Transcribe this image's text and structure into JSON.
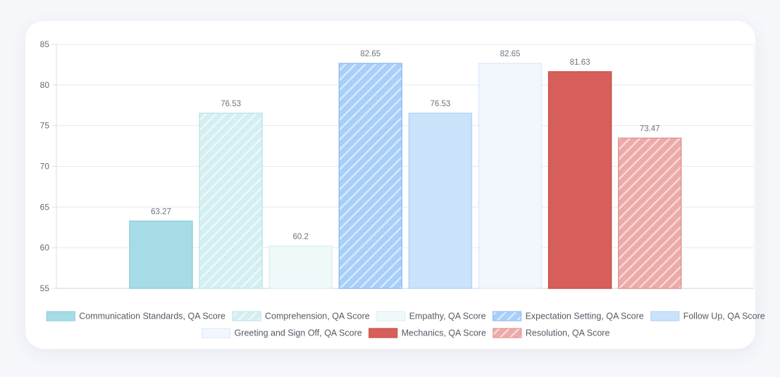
{
  "chart_data": {
    "type": "bar",
    "title": "",
    "xlabel": "",
    "ylabel": "",
    "ylim": [
      55,
      85
    ],
    "yticks": [
      55,
      60,
      65,
      70,
      75,
      80,
      85
    ],
    "grid": true,
    "legend_position": "bottom",
    "series": [
      {
        "name": "Communication Standards, QA Score",
        "value": 63.27,
        "fill": "#a6dce6",
        "stroke": "#8fd0dc",
        "pattern": false
      },
      {
        "name": "Comprehension, QA Score",
        "value": 76.53,
        "fill": "#d4eff2",
        "stroke": "#bfe5ea",
        "pattern": true
      },
      {
        "name": "Empathy, QA Score",
        "value": 60.2,
        "fill": "#f0f9fa",
        "stroke": "#dcf0f3",
        "pattern": false
      },
      {
        "name": "Expectation Setting, QA Score",
        "value": 82.65,
        "fill": "#a8cffa",
        "stroke": "#8fbef3",
        "pattern": true
      },
      {
        "name": "Follow Up, QA Score",
        "value": 76.53,
        "fill": "#cae3fb",
        "stroke": "#b3d5f6",
        "pattern": false
      },
      {
        "name": "Greeting and Sign Off, QA Score",
        "value": 82.65,
        "fill": "#f1f7fd",
        "stroke": "#deecf8",
        "pattern": false
      },
      {
        "name": "Mechanics, QA Score",
        "value": 81.63,
        "fill": "#d65f5b",
        "stroke": "#c8504c",
        "pattern": false
      },
      {
        "name": "Resolution, QA Score",
        "value": 73.47,
        "fill": "#ecaaa8",
        "stroke": "#e29593",
        "pattern": true
      }
    ]
  }
}
